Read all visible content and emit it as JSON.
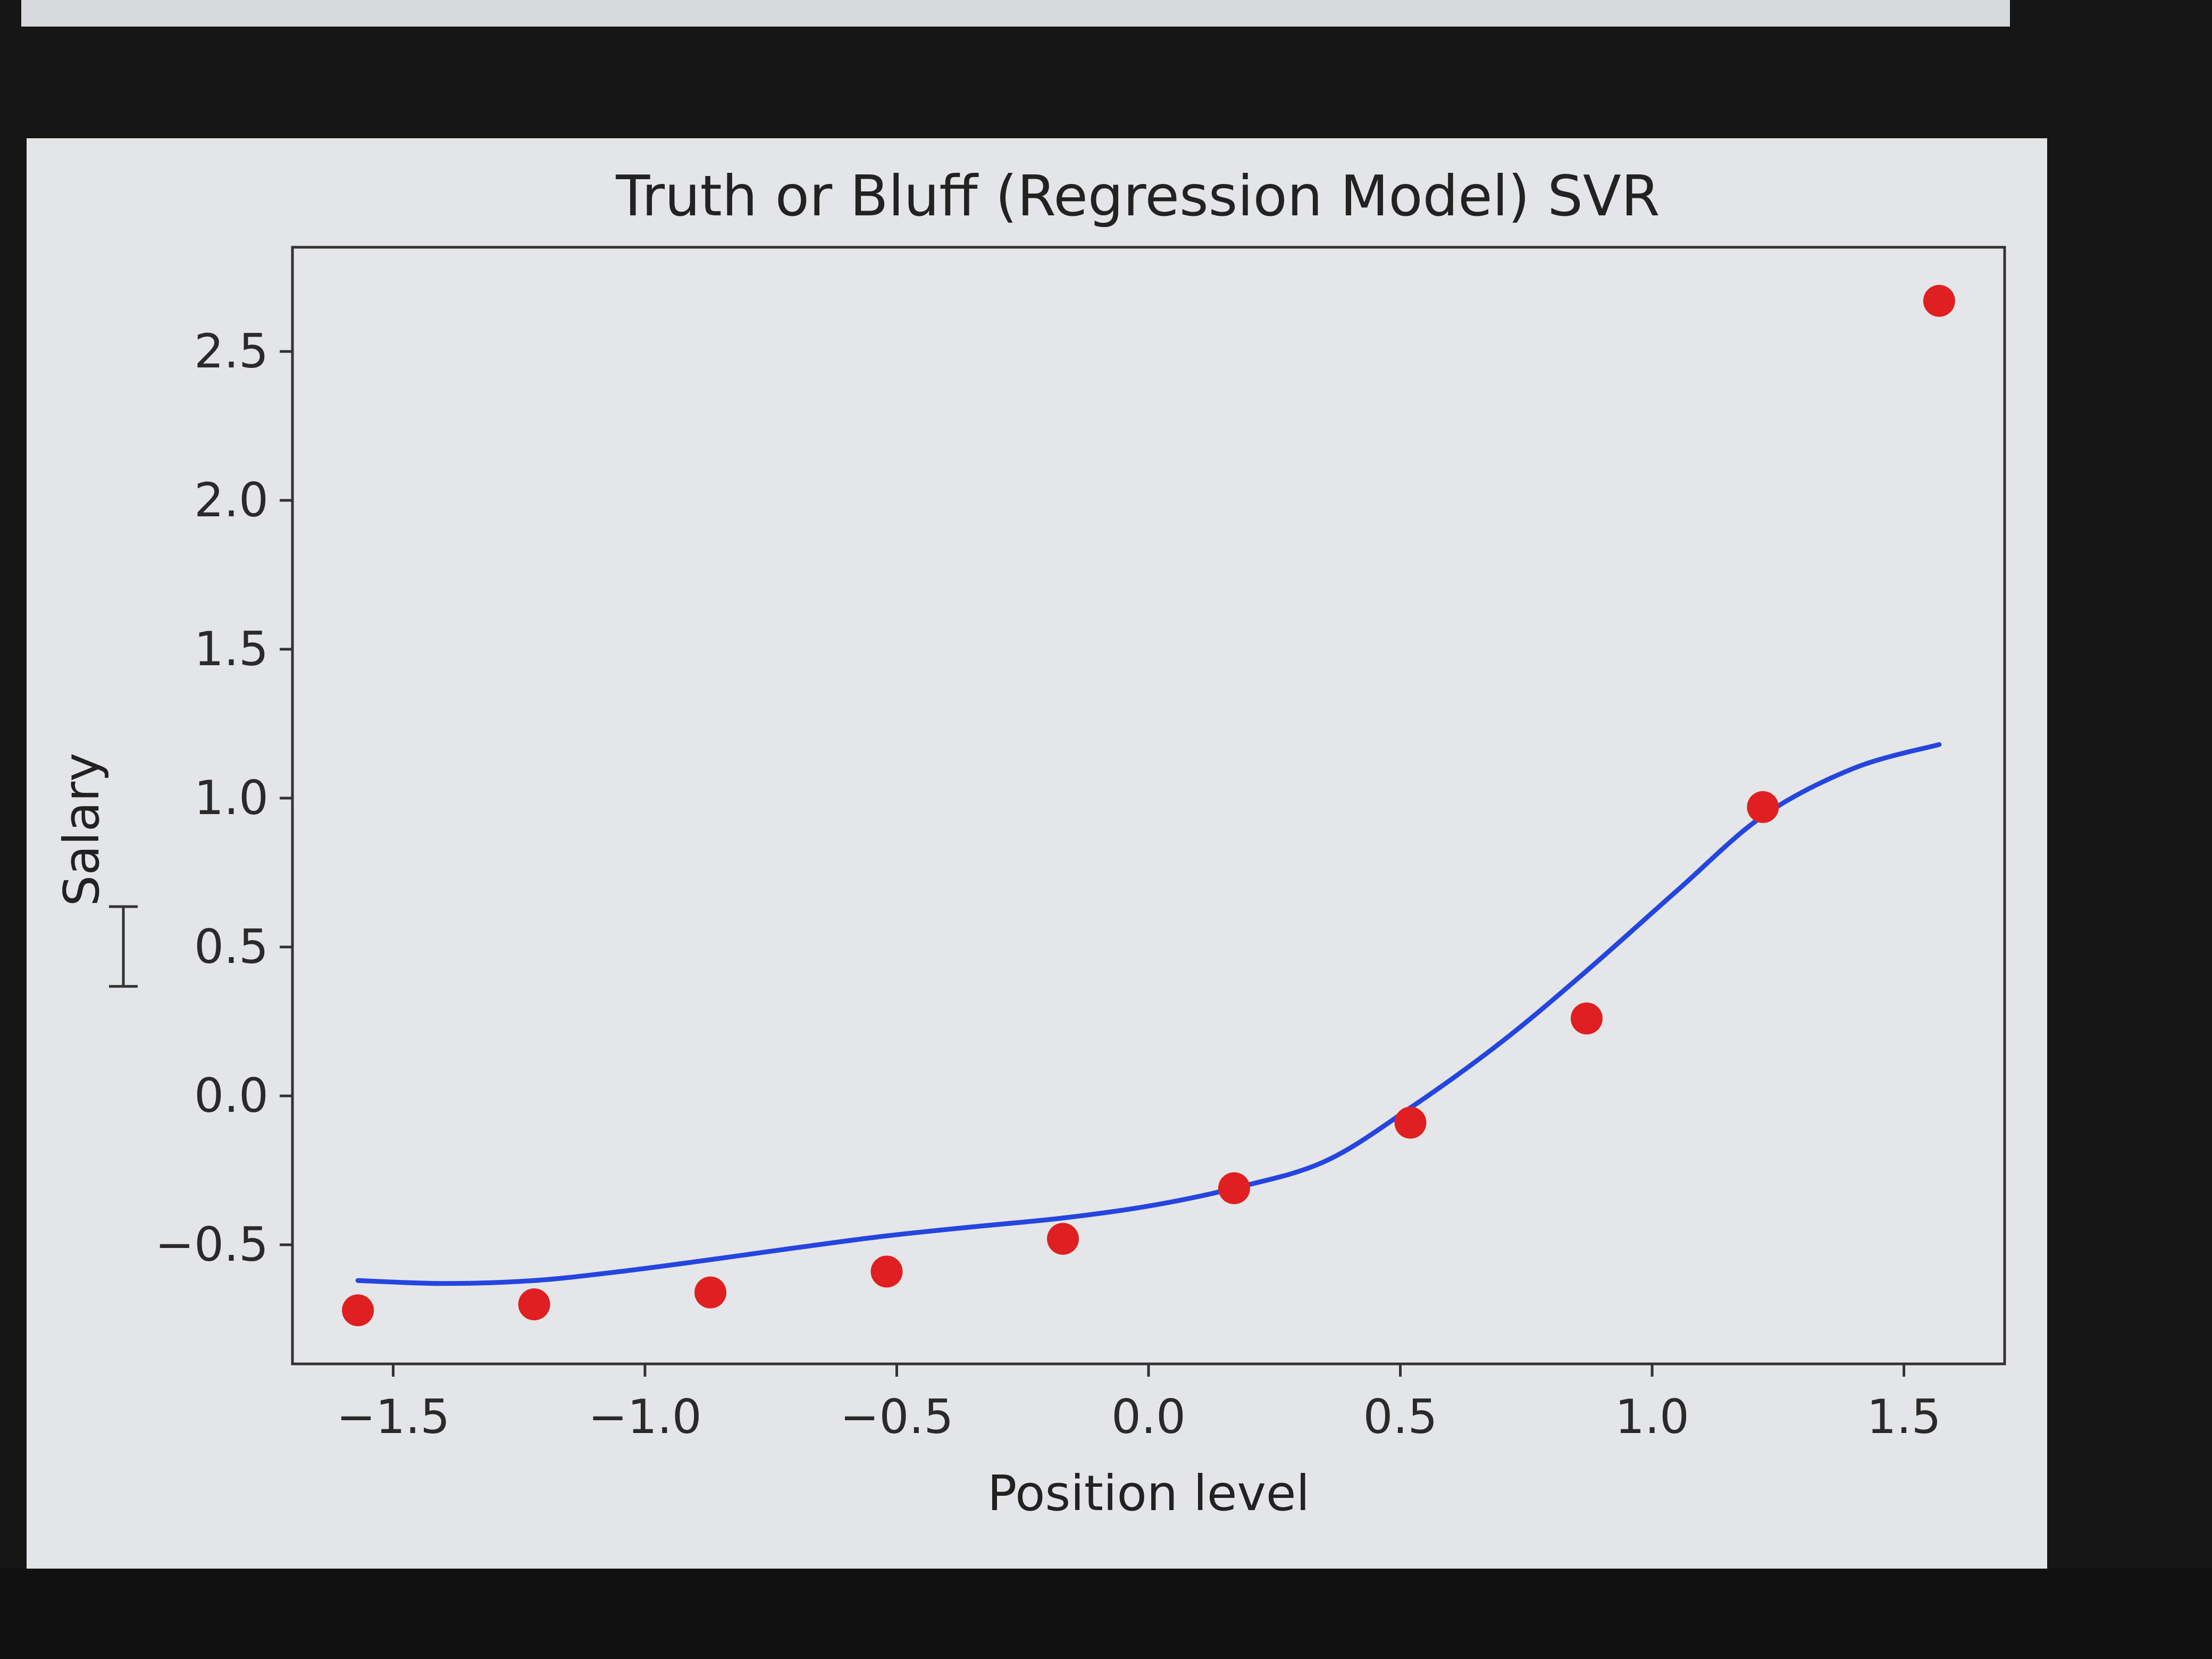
{
  "chart_data": {
    "type": "scatter",
    "title": "Truth or Bluff (Regression Model) SVR",
    "xlabel": "Position level",
    "ylabel": "Salary",
    "xlim": [
      -1.7,
      1.7
    ],
    "ylim": [
      -0.9,
      2.85
    ],
    "xticks": [
      -1.5,
      -1.0,
      -0.5,
      0.0,
      0.5,
      1.0,
      1.5
    ],
    "xtick_labels": [
      "−1.5",
      "−1.0",
      "−0.5",
      "0.0",
      "0.5",
      "1.0",
      "1.5"
    ],
    "yticks": [
      -0.5,
      0.0,
      0.5,
      1.0,
      1.5,
      2.0,
      2.5
    ],
    "ytick_labels": [
      "−0.5",
      "0.0",
      "0.5",
      "1.0",
      "1.5",
      "2.0",
      "2.5"
    ],
    "grid": false,
    "series": [
      {
        "kind": "scatter",
        "color": "#e02020",
        "points": [
          [
            -1.57,
            -0.72
          ],
          [
            -1.22,
            -0.7
          ],
          [
            -0.87,
            -0.66
          ],
          [
            -0.52,
            -0.59
          ],
          [
            -0.17,
            -0.48
          ],
          [
            0.17,
            -0.31
          ],
          [
            0.52,
            -0.09
          ],
          [
            0.87,
            0.26
          ],
          [
            1.22,
            0.97
          ],
          [
            1.57,
            2.67
          ]
        ]
      },
      {
        "kind": "line",
        "color": "#2445e0",
        "points": [
          [
            -1.57,
            -0.62
          ],
          [
            -1.4,
            -0.63
          ],
          [
            -1.22,
            -0.62
          ],
          [
            -1.05,
            -0.59
          ],
          [
            -0.87,
            -0.55
          ],
          [
            -0.7,
            -0.51
          ],
          [
            -0.52,
            -0.47
          ],
          [
            -0.35,
            -0.44
          ],
          [
            -0.17,
            -0.41
          ],
          [
            0.0,
            -0.37
          ],
          [
            0.17,
            -0.31
          ],
          [
            0.35,
            -0.22
          ],
          [
            0.52,
            -0.04
          ],
          [
            0.7,
            0.18
          ],
          [
            0.87,
            0.42
          ],
          [
            1.05,
            0.69
          ],
          [
            1.22,
            0.94
          ],
          [
            1.4,
            1.1
          ],
          [
            1.57,
            1.18
          ]
        ]
      }
    ]
  }
}
